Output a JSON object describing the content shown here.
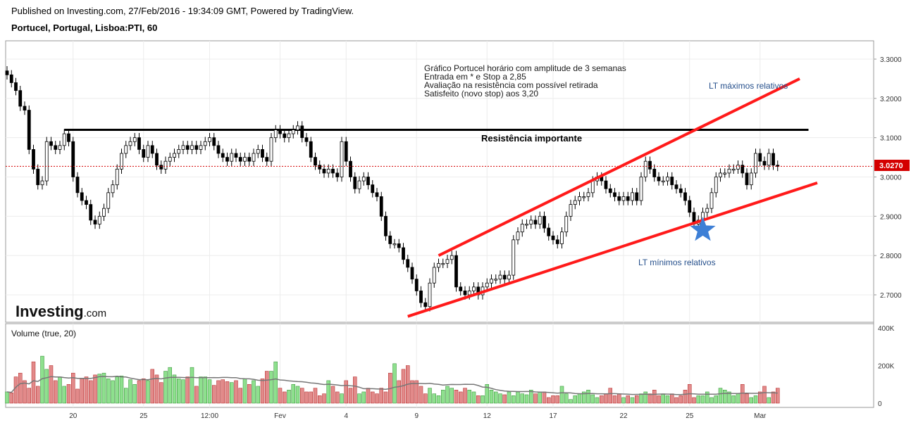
{
  "header": {
    "published": "Published on Investing.com, 27/Feb/2016 - 19:34:09 GMT, Powered by TradingView.",
    "symbol": "Portucel, Portugal, Lisboa:PTI, 60"
  },
  "brand": {
    "logo": "Investing",
    "suffix": ".com"
  },
  "volume_label": "Volume (true, 20)",
  "colors": {
    "up": "#8ee08e",
    "down": "#e28a8a",
    "up_stroke": "#2e8b2e",
    "down_stroke": "#b22222",
    "trend": "#ff1a1a",
    "star": "#3d7fd6",
    "last_price": "#d40000",
    "label_blue": "#26508c"
  },
  "chart_data": {
    "type": "candlestick",
    "y_range": [
      2.64,
      3.33
    ],
    "y_ticks": [
      "3.3000",
      "3.2000",
      "3.1000",
      "3.0000",
      "2.9000",
      "2.8000",
      "2.7000"
    ],
    "y_tick_values": [
      3.3,
      3.2,
      3.1,
      3.0,
      2.9,
      2.8,
      2.7
    ],
    "last_price": 3.027,
    "last_price_label": "3.0270",
    "x_ticks": [
      {
        "label": "20",
        "bar": 15
      },
      {
        "label": "25",
        "bar": 31
      },
      {
        "label": "12:00",
        "bar": 46
      },
      {
        "label": "Fev",
        "bar": 62
      },
      {
        "label": "4",
        "bar": 77
      },
      {
        "label": "9",
        "bar": 93
      },
      {
        "label": "12",
        "bar": 109
      },
      {
        "label": "17",
        "bar": 124
      },
      {
        "label": "22",
        "bar": 140
      },
      {
        "label": "25",
        "bar": 155
      },
      {
        "label": "Mar",
        "bar": 171
      }
    ],
    "close": [
      3.26,
      3.24,
      3.22,
      3.18,
      3.17,
      3.07,
      3.02,
      2.98,
      2.99,
      3.09,
      3.08,
      3.07,
      3.08,
      3.11,
      3.09,
      3.0,
      2.96,
      2.94,
      2.93,
      2.89,
      2.88,
      2.9,
      2.92,
      2.96,
      2.98,
      3.02,
      3.06,
      3.08,
      3.09,
      3.1,
      3.07,
      3.05,
      3.08,
      3.06,
      3.03,
      3.02,
      3.04,
      3.05,
      3.06,
      3.07,
      3.08,
      3.07,
      3.08,
      3.07,
      3.08,
      3.09,
      3.1,
      3.08,
      3.06,
      3.05,
      3.04,
      3.06,
      3.05,
      3.04,
      3.05,
      3.04,
      3.06,
      3.07,
      3.05,
      3.04,
      3.1,
      3.12,
      3.11,
      3.1,
      3.11,
      3.12,
      3.13,
      3.1,
      3.09,
      3.05,
      3.03,
      3.02,
      3.01,
      3.02,
      3.01,
      3.0,
      3.09,
      3.04,
      3.0,
      2.97,
      2.99,
      3.0,
      2.98,
      2.96,
      2.95,
      2.9,
      2.85,
      2.83,
      2.83,
      2.82,
      2.79,
      2.77,
      2.74,
      2.71,
      2.68,
      2.67,
      2.73,
      2.77,
      2.78,
      2.78,
      2.79,
      2.8,
      2.72,
      2.71,
      2.7,
      2.71,
      2.72,
      2.7,
      2.72,
      2.73,
      2.74,
      2.74,
      2.75,
      2.74,
      2.75,
      2.84,
      2.86,
      2.88,
      2.88,
      2.89,
      2.88,
      2.9,
      2.87,
      2.85,
      2.84,
      2.83,
      2.86,
      2.9,
      2.93,
      2.94,
      2.95,
      2.95,
      2.96,
      2.99,
      3.0,
      2.99,
      2.97,
      2.96,
      2.95,
      2.94,
      2.95,
      2.94,
      2.96,
      2.94,
      3.0,
      3.04,
      3.02,
      3.0,
      2.99,
      2.99,
      3.0,
      2.98,
      2.97,
      2.96,
      2.94,
      2.91,
      2.88,
      2.89,
      2.91,
      2.92,
      2.96,
      3.0,
      3.01,
      3.01,
      3.02,
      3.02,
      3.03,
      3.01,
      2.98,
      3.01,
      3.06,
      3.04,
      3.03,
      3.06,
      3.03,
      3.027
    ],
    "volume_k": [
      60,
      55,
      140,
      160,
      120,
      80,
      220,
      90,
      250,
      180,
      200,
      120,
      140,
      90,
      100,
      160,
      75,
      130,
      140,
      120,
      150,
      155,
      160,
      130,
      120,
      140,
      145,
      80,
      125,
      100,
      120,
      130,
      120,
      180,
      150,
      110,
      170,
      190,
      150,
      130,
      125,
      140,
      190,
      90,
      140,
      140,
      125,
      95,
      120,
      125,
      115,
      110,
      120,
      80,
      130,
      100,
      120,
      90,
      130,
      170,
      170,
      220,
      80,
      60,
      70,
      100,
      90,
      80,
      60,
      60,
      80,
      40,
      50,
      120,
      90,
      60,
      50,
      120,
      80,
      140,
      50,
      60,
      80,
      60,
      50,
      80,
      60,
      160,
      210,
      120,
      180,
      200,
      120,
      120,
      90,
      50,
      80,
      50,
      40,
      70,
      90,
      80,
      70,
      60,
      80,
      70,
      60,
      40,
      40,
      100,
      70,
      60,
      50,
      45,
      60,
      40,
      60,
      50,
      45,
      70,
      50,
      60,
      60,
      30,
      40,
      40,
      90,
      50,
      20,
      40,
      50,
      60,
      70,
      45,
      30,
      40,
      50,
      80,
      40,
      50,
      30,
      40,
      30,
      40,
      50,
      60,
      50,
      70,
      40,
      50,
      40,
      50,
      30,
      40,
      70,
      100,
      30,
      40,
      40,
      60,
      30,
      40,
      80,
      70,
      60,
      40,
      50,
      100,
      50,
      30,
      40,
      60,
      90,
      30,
      60,
      80
    ],
    "volume_axis": [
      "400K",
      "200K",
      "0"
    ],
    "volume_axis_values": [
      400,
      200,
      0
    ]
  },
  "annotations": {
    "note": [
      "Gráfico Portucel horário com amplitude de 3 semanas",
      "Entrada em * e Stop a 2,85",
      "Avaliação na resistência com possível retirada",
      "Satisfeito (novo stop) aos 3,20"
    ],
    "resistance": "Resistência importante",
    "resistance_level": 3.12,
    "lt_max": "LT máximos relativos",
    "lt_min": "LT mínimos relativos",
    "lines": {
      "resistance": {
        "bar_start": 13,
        "bar_end": 182,
        "price": 3.12
      },
      "upper_trend": {
        "bar_start": 98,
        "price_start": 2.8,
        "bar_end": 180,
        "price_end": 3.25
      },
      "lower_trend": {
        "bar_start": 91,
        "price_start": 2.645,
        "bar_end": 184,
        "price_end": 2.985
      }
    },
    "star": {
      "bar": 158,
      "price": 2.865
    }
  }
}
